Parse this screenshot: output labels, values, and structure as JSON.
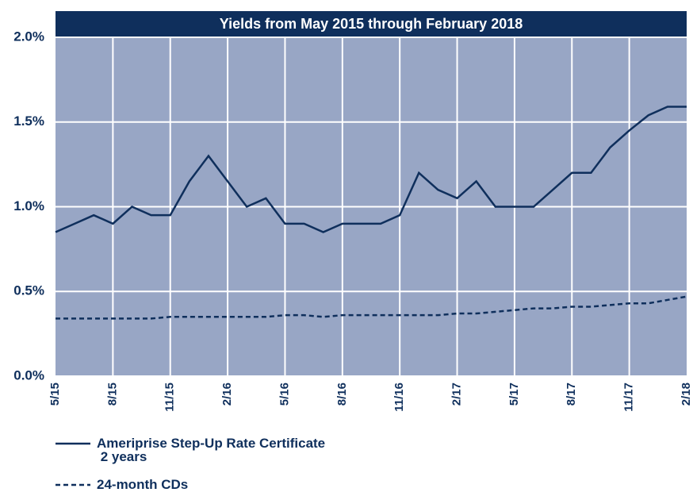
{
  "chart_data": {
    "type": "line",
    "title": "Yields from May 2015 through February 2018",
    "categories": [
      "5/15",
      null,
      null,
      "8/15",
      null,
      null,
      "11/15",
      null,
      null,
      "2/16",
      null,
      null,
      "5/16",
      null,
      null,
      "8/16",
      null,
      null,
      "11/16",
      null,
      null,
      "2/17",
      null,
      null,
      "5/17",
      null,
      null,
      "8/17",
      null,
      null,
      "11/17",
      null,
      null,
      "2/18"
    ],
    "series": [
      {
        "name": "Ameriprise Step-Up Rate Certificate\n 2 years",
        "color": "#0f2f5c",
        "dash": false,
        "values": [
          0.85,
          0.9,
          0.95,
          0.9,
          1.0,
          0.95,
          0.95,
          1.15,
          1.3,
          1.15,
          1.0,
          1.05,
          0.9,
          0.9,
          0.85,
          0.9,
          0.9,
          0.9,
          0.95,
          1.2,
          1.1,
          1.05,
          1.15,
          1.0,
          1.0,
          1.0,
          1.1,
          1.2,
          1.2,
          1.35,
          1.45,
          1.54,
          1.59,
          1.59
        ]
      },
      {
        "name": "24-month CDs",
        "color": "#0f2f5c",
        "dash": true,
        "values": [
          0.34,
          0.34,
          0.34,
          0.34,
          0.34,
          0.34,
          0.35,
          0.35,
          0.35,
          0.35,
          0.35,
          0.35,
          0.36,
          0.36,
          0.35,
          0.36,
          0.36,
          0.36,
          0.36,
          0.36,
          0.36,
          0.37,
          0.37,
          0.38,
          0.39,
          0.4,
          0.4,
          0.41,
          0.41,
          0.42,
          0.43,
          0.43,
          0.45,
          0.47
        ]
      }
    ],
    "ylim": [
      0,
      2
    ],
    "yticks": [
      {
        "value": 0,
        "label": "0.0%"
      },
      {
        "value": 0.5,
        "label": "0.5%"
      },
      {
        "value": 1,
        "label": "1.0%"
      },
      {
        "value": 1.5,
        "label": "1.5%"
      },
      {
        "value": 2,
        "label": "2.0%"
      }
    ],
    "grid": true,
    "background": "#98a6c5"
  }
}
